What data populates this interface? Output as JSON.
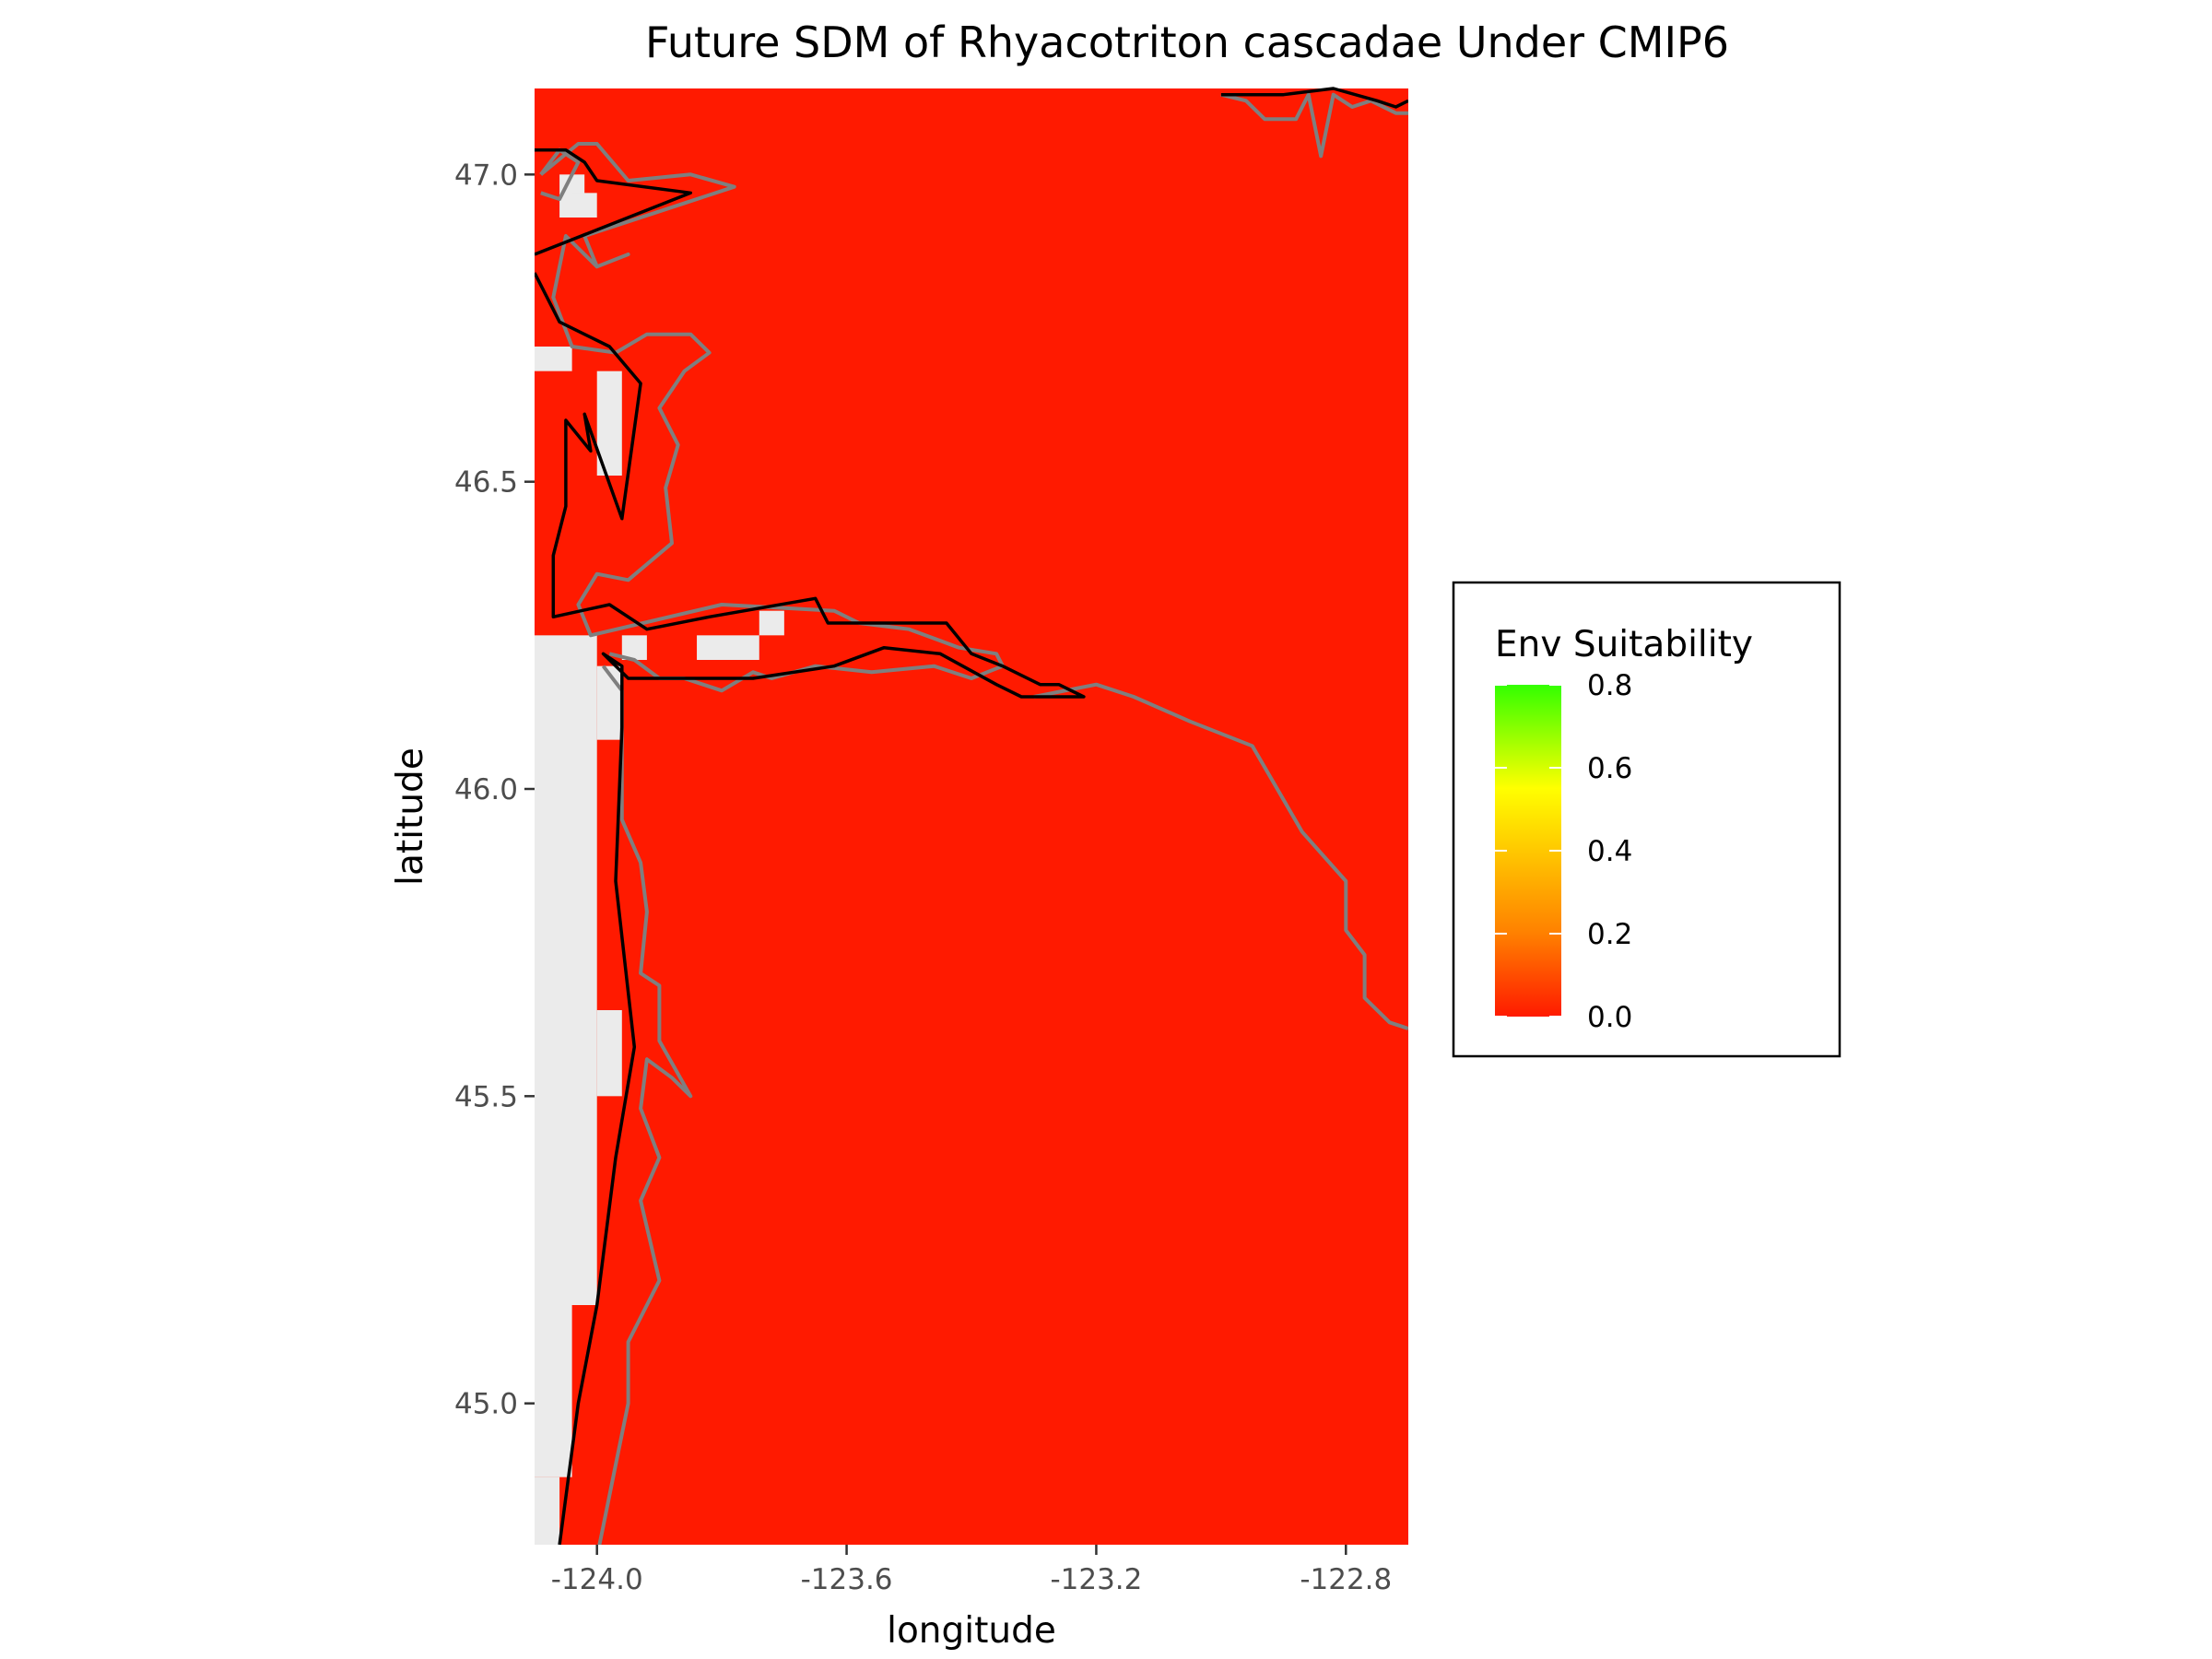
{
  "chart_data": {
    "type": "heatmap",
    "title": "Future SDM of Rhyacotriton cascadae Under CMIP6",
    "xlabel": "longitude",
    "ylabel": "latitude",
    "xlim": [
      -124.1,
      -122.7
    ],
    "ylim": [
      44.77,
      47.14
    ],
    "x_ticks": [
      -124.0,
      -123.6,
      -123.2,
      -122.8
    ],
    "x_tick_labels": [
      "-124.0",
      "-123.6",
      "-123.2",
      "-122.8"
    ],
    "y_ticks": [
      45.0,
      45.5,
      46.0,
      46.5,
      47.0
    ],
    "y_tick_labels": [
      "45.0",
      "45.5",
      "46.0",
      "46.5",
      "47.0"
    ],
    "grid": false,
    "fill_value": 0.0,
    "fill_color": "#FF1A00",
    "na_color": "#EBEBEB",
    "legend": {
      "title": "Env Suitability",
      "position": "right",
      "breaks": [
        0.0,
        0.2,
        0.4,
        0.6,
        0.8
      ],
      "break_labels": [
        "0.0",
        "0.2",
        "0.4",
        "0.6",
        "0.8"
      ],
      "gradient": [
        {
          "value": 0.0,
          "color": "#FF1A00"
        },
        {
          "value": 0.2,
          "color": "#FF8000"
        },
        {
          "value": 0.4,
          "color": "#FFC800"
        },
        {
          "value": 0.55,
          "color": "#FFFF00"
        },
        {
          "value": 0.8,
          "color": "#33FF00"
        }
      ]
    },
    "no_data_cells": [
      {
        "lon": [
          -124.1,
          -124.06
        ],
        "lat": [
          44.77,
          44.88
        ]
      },
      {
        "lon": [
          -124.1,
          -124.04
        ],
        "lat": [
          44.88,
          45.16
        ]
      },
      {
        "lon": [
          -124.1,
          -124.0
        ],
        "lat": [
          45.16,
          46.25
        ]
      },
      {
        "lon": [
          -124.0,
          -123.96
        ],
        "lat": [
          46.08,
          46.2
        ]
      },
      {
        "lon": [
          -124.0,
          -123.96
        ],
        "lat": [
          45.5,
          45.64
        ]
      },
      {
        "lon": [
          -124.1,
          -124.04
        ],
        "lat": [
          46.68,
          46.72
        ]
      },
      {
        "lon": [
          -124.0,
          -123.96
        ],
        "lat": [
          46.51,
          46.68
        ]
      },
      {
        "lon": [
          -124.06,
          -124.02
        ],
        "lat": [
          46.93,
          47.0
        ]
      },
      {
        "lon": [
          -124.04,
          -124.0
        ],
        "lat": [
          46.93,
          46.97
        ]
      },
      {
        "lon": [
          -123.96,
          -123.92
        ],
        "lat": [
          46.21,
          46.25
        ]
      },
      {
        "lon": [
          -123.84,
          -123.74
        ],
        "lat": [
          46.21,
          46.25
        ]
      },
      {
        "lon": [
          -123.74,
          -123.7
        ],
        "lat": [
          46.25,
          46.29
        ]
      }
    ],
    "outline_gray": [
      [
        [
          -124.09,
          46.97
        ],
        [
          -124.06,
          46.96
        ],
        [
          -124.03,
          47.02
        ],
        [
          -124.06,
          47.04
        ],
        [
          -124.09,
          47.0
        ]
      ],
      [
        [
          -124.09,
          47.0
        ],
        [
          -124.03,
          47.05
        ],
        [
          -124.0,
          47.05
        ],
        [
          -123.95,
          46.99
        ],
        [
          -123.85,
          47.0
        ],
        [
          -123.78,
          46.98
        ],
        [
          -124.02,
          46.9
        ],
        [
          -124.0,
          46.85
        ],
        [
          -123.95,
          46.87
        ],
        [
          -124.0,
          46.85
        ],
        [
          -124.05,
          46.9
        ],
        [
          -124.07,
          46.8
        ],
        [
          -124.04,
          46.72
        ],
        [
          -123.97,
          46.71
        ],
        [
          -123.92,
          46.74
        ],
        [
          -123.85,
          46.74
        ],
        [
          -123.82,
          46.71
        ],
        [
          -123.86,
          46.68
        ],
        [
          -123.9,
          46.62
        ],
        [
          -123.87,
          46.56
        ],
        [
          -123.89,
          46.49
        ],
        [
          -123.88,
          46.4
        ],
        [
          -123.95,
          46.34
        ],
        [
          -124.0,
          46.35
        ],
        [
          -124.03,
          46.3
        ],
        [
          -124.01,
          46.25
        ],
        [
          -123.8,
          46.3
        ],
        [
          -123.62,
          46.29
        ],
        [
          -123.58,
          46.27
        ],
        [
          -123.5,
          46.26
        ],
        [
          -123.42,
          46.23
        ],
        [
          -123.36,
          46.22
        ],
        [
          -123.35,
          46.2
        ],
        [
          -123.4,
          46.18
        ],
        [
          -123.46,
          46.2
        ],
        [
          -123.56,
          46.19
        ],
        [
          -123.65,
          46.2
        ],
        [
          -123.72,
          46.18
        ],
        [
          -123.75,
          46.19
        ],
        [
          -123.8,
          46.16
        ],
        [
          -123.86,
          46.18
        ],
        [
          -123.9,
          46.18
        ],
        [
          -123.94,
          46.21
        ],
        [
          -123.98,
          46.22
        ]
      ],
      [
        [
          -123.99,
          46.2
        ],
        [
          -123.96,
          46.16
        ],
        [
          -123.96,
          46.1
        ],
        [
          -123.96,
          45.95
        ],
        [
          -123.93,
          45.88
        ],
        [
          -123.92,
          45.8
        ],
        [
          -123.93,
          45.7
        ],
        [
          -123.9,
          45.68
        ],
        [
          -123.9,
          45.59
        ],
        [
          -123.85,
          45.5
        ],
        [
          -123.88,
          45.53
        ],
        [
          -123.92,
          45.56
        ],
        [
          -123.93,
          45.48
        ],
        [
          -123.9,
          45.4
        ],
        [
          -123.93,
          45.33
        ],
        [
          -123.9,
          45.2
        ],
        [
          -123.95,
          45.1
        ],
        [
          -123.95,
          45.0
        ],
        [
          -123.97,
          44.9
        ],
        [
          -123.99,
          44.8
        ],
        [
          -124.0,
          44.75
        ]
      ],
      [
        [
          -123.3,
          46.15
        ],
        [
          -123.2,
          46.17
        ],
        [
          -123.14,
          46.15
        ],
        [
          -123.05,
          46.11
        ],
        [
          -122.95,
          46.07
        ],
        [
          -122.87,
          45.93
        ],
        [
          -122.8,
          45.85
        ],
        [
          -122.8,
          45.77
        ],
        [
          -122.77,
          45.73
        ],
        [
          -122.77,
          45.66
        ],
        [
          -122.73,
          45.62
        ],
        [
          -122.7,
          45.61
        ]
      ],
      [
        [
          -123.0,
          47.13
        ],
        [
          -122.96,
          47.12
        ],
        [
          -122.93,
          47.09
        ],
        [
          -122.88,
          47.09
        ],
        [
          -122.86,
          47.13
        ],
        [
          -122.84,
          47.03
        ],
        [
          -122.82,
          47.13
        ],
        [
          -122.79,
          47.11
        ],
        [
          -122.76,
          47.12
        ],
        [
          -122.72,
          47.1
        ],
        [
          -122.7,
          47.1
        ]
      ]
    ],
    "outline_black": [
      [
        [
          -124.1,
          47.04
        ],
        [
          -124.05,
          47.04
        ],
        [
          -124.02,
          47.02
        ],
        [
          -124.0,
          46.99
        ],
        [
          -123.85,
          46.97
        ],
        [
          -124.1,
          46.87
        ]
      ],
      [
        [
          -124.1,
          46.84
        ],
        [
          -124.06,
          46.76
        ],
        [
          -123.98,
          46.72
        ],
        [
          -123.93,
          46.66
        ],
        [
          -123.96,
          46.44
        ],
        [
          -124.02,
          46.61
        ],
        [
          -124.01,
          46.55
        ],
        [
          -124.05,
          46.6
        ],
        [
          -124.05,
          46.46
        ],
        [
          -124.07,
          46.38
        ],
        [
          -124.07,
          46.28
        ],
        [
          -123.98,
          46.3
        ],
        [
          -123.92,
          46.26
        ],
        [
          -123.82,
          46.28
        ],
        [
          -123.65,
          46.31
        ],
        [
          -123.63,
          46.27
        ],
        [
          -123.44,
          46.27
        ],
        [
          -123.4,
          46.22
        ],
        [
          -123.35,
          46.2
        ],
        [
          -123.29,
          46.17
        ],
        [
          -123.26,
          46.17
        ],
        [
          -123.22,
          46.15
        ],
        [
          -123.32,
          46.15
        ],
        [
          -123.36,
          46.17
        ],
        [
          -123.45,
          46.22
        ],
        [
          -123.54,
          46.23
        ],
        [
          -123.62,
          46.2
        ],
        [
          -123.75,
          46.18
        ],
        [
          -123.95,
          46.18
        ],
        [
          -123.99,
          46.22
        ],
        [
          -123.96,
          46.2
        ],
        [
          -123.96,
          46.1
        ],
        [
          -123.97,
          45.85
        ],
        [
          -123.94,
          45.58
        ],
        [
          -123.97,
          45.4
        ],
        [
          -124.0,
          45.16
        ],
        [
          -124.03,
          45.0
        ],
        [
          -124.06,
          44.77
        ]
      ],
      [
        [
          -123.0,
          47.13
        ],
        [
          -122.9,
          47.13
        ],
        [
          -122.82,
          47.14
        ],
        [
          -122.75,
          47.12
        ],
        [
          -122.72,
          47.11
        ],
        [
          -122.7,
          47.12
        ]
      ]
    ]
  }
}
